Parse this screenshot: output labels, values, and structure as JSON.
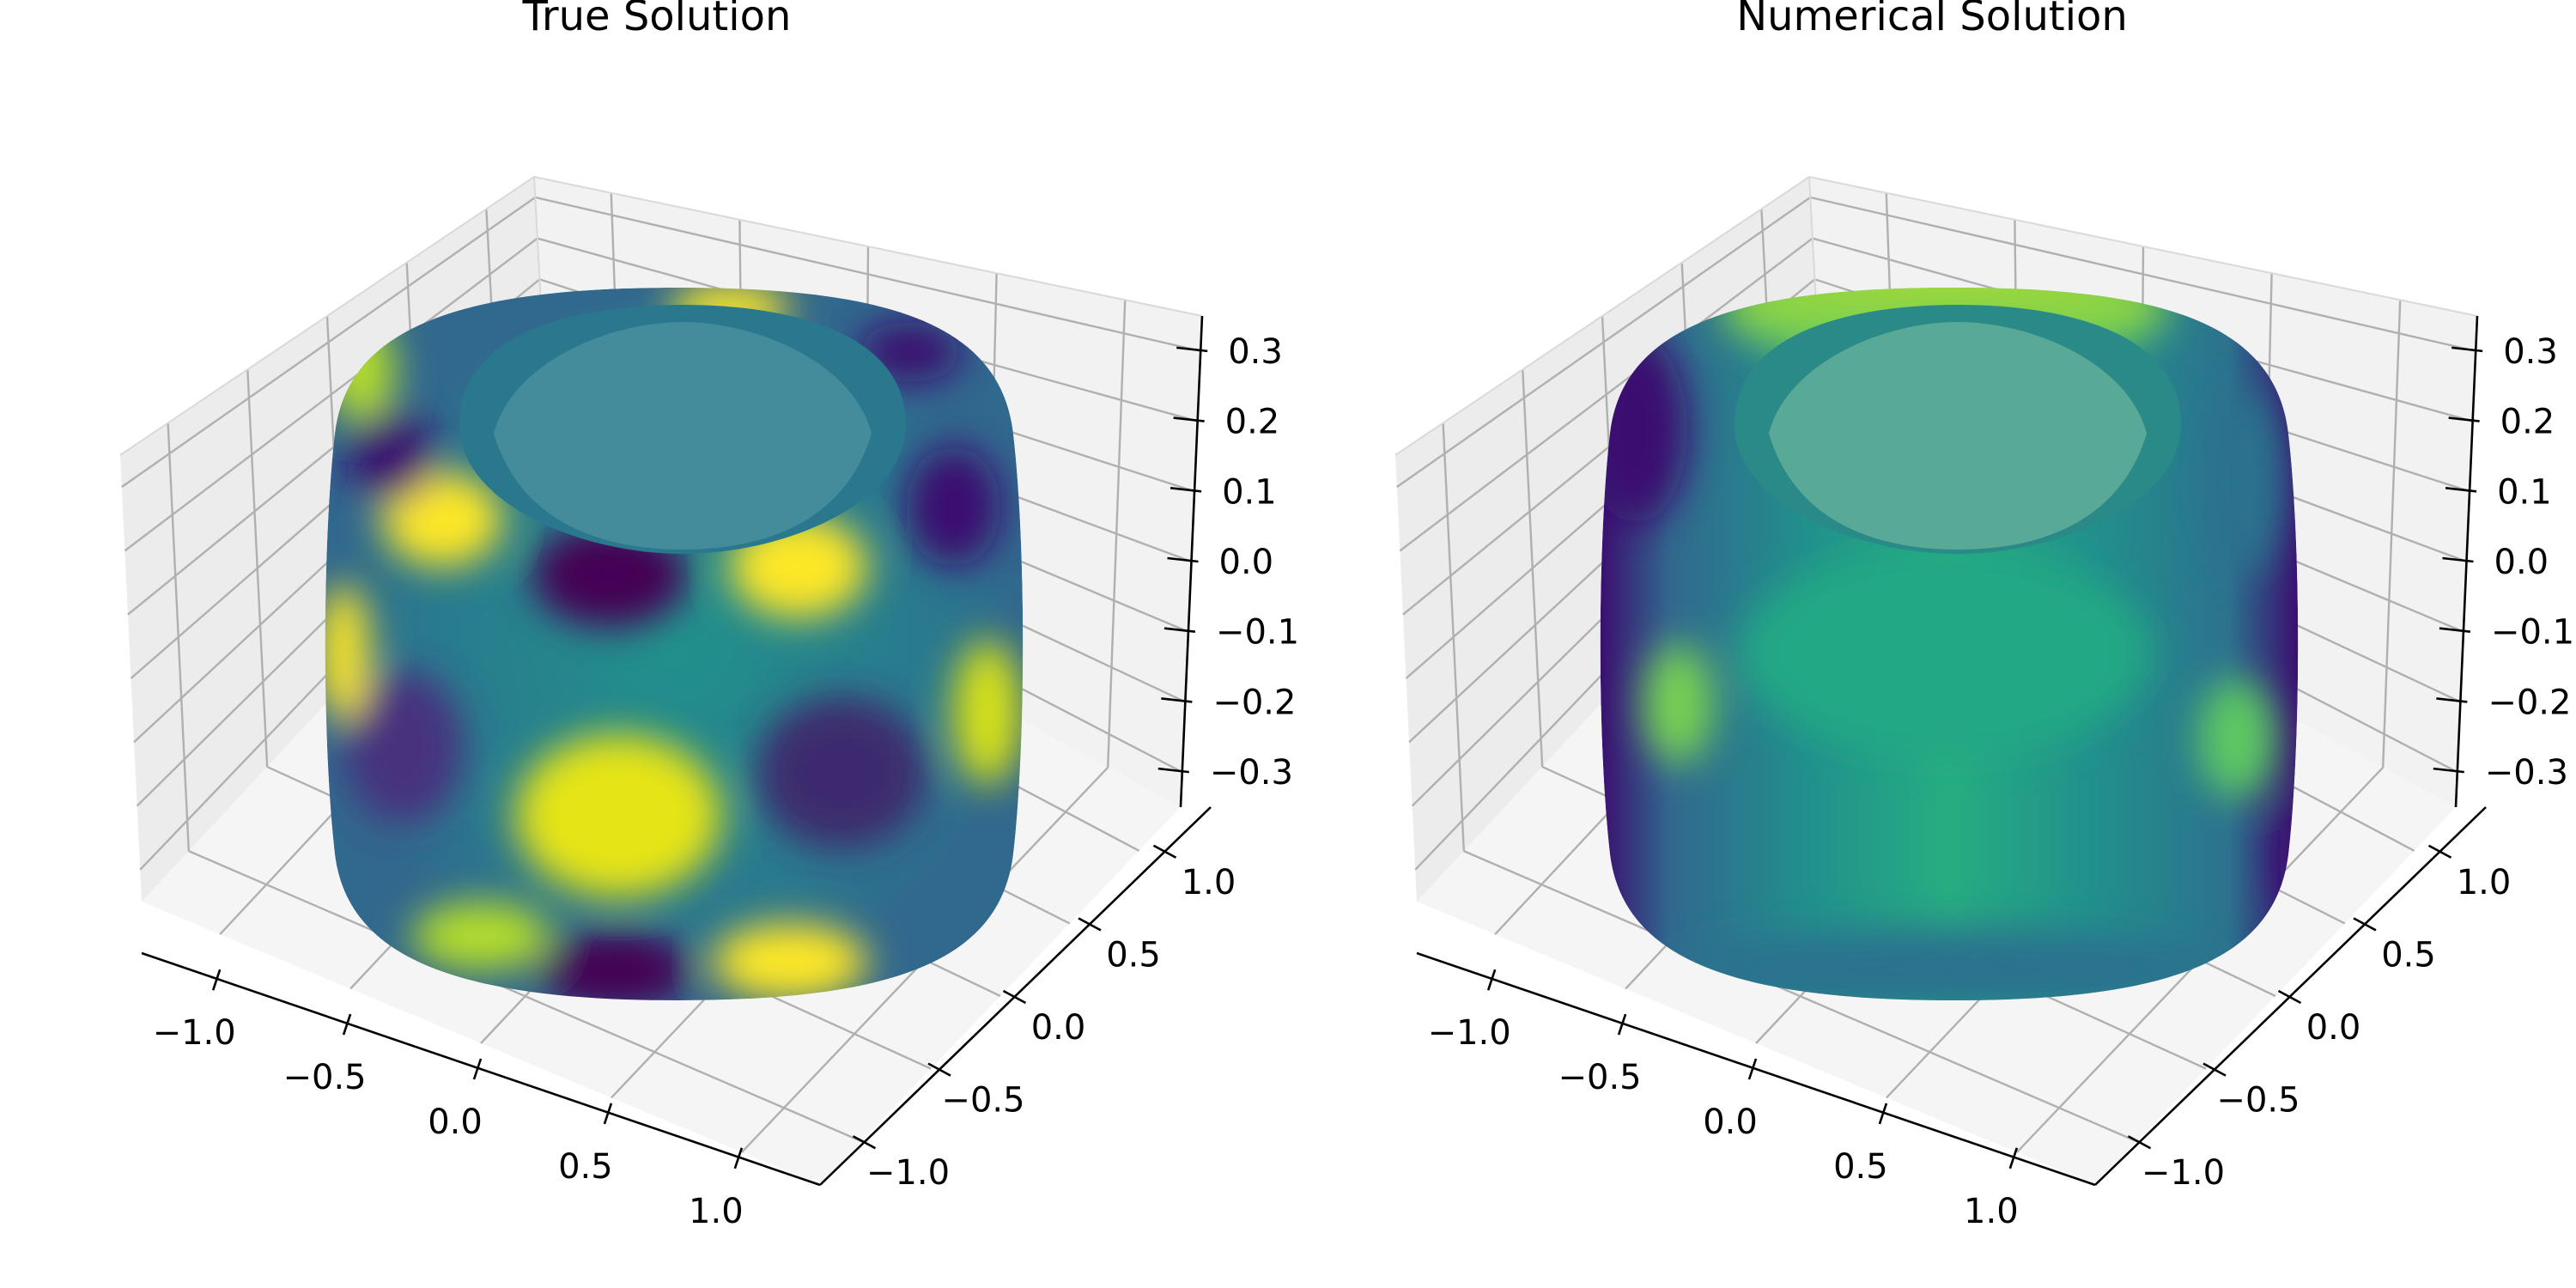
{
  "chart_data": [
    {
      "type": "scatter3d",
      "title": "True Solution",
      "surface": "torus",
      "colormap": "viridis",
      "grid": true,
      "xlim": [
        -1.3,
        1.3
      ],
      "ylim": [
        -1.3,
        1.3
      ],
      "zlim": [
        -0.35,
        0.35
      ],
      "xticks": [
        -1.0,
        -0.5,
        0.0,
        0.5,
        1.0
      ],
      "yticks": [
        -1.0,
        -0.5,
        0.0,
        0.5,
        1.0
      ],
      "zticks": [
        -0.3,
        -0.2,
        -0.1,
        0.0,
        0.1,
        0.2,
        0.3
      ],
      "xtick_labels": [
        "−1.0",
        "−0.5",
        "0.0",
        "0.5",
        "1.0"
      ],
      "ytick_labels": [
        "−1.0",
        "−0.5",
        "0.0",
        "0.5",
        "1.0"
      ],
      "ztick_labels": [
        "−0.3",
        "−0.2",
        "−0.1",
        "0.0",
        "0.1",
        "0.2",
        "0.3"
      ]
    },
    {
      "type": "scatter3d",
      "title": "Numerical Solution",
      "surface": "torus",
      "colormap": "viridis",
      "grid": true,
      "xlim": [
        -1.3,
        1.3
      ],
      "ylim": [
        -1.3,
        1.3
      ],
      "zlim": [
        -0.35,
        0.35
      ],
      "xticks": [
        -1.0,
        -0.5,
        0.0,
        0.5,
        1.0
      ],
      "yticks": [
        -1.0,
        -0.5,
        0.0,
        0.5,
        1.0
      ],
      "zticks": [
        -0.3,
        -0.2,
        -0.1,
        0.0,
        0.1,
        0.2,
        0.3
      ],
      "xtick_labels": [
        "−1.0",
        "−0.5",
        "0.0",
        "0.5",
        "1.0"
      ],
      "ytick_labels": [
        "−1.0",
        "−0.5",
        "0.0",
        "0.5",
        "1.0"
      ],
      "ztick_labels": [
        "−0.3",
        "−0.2",
        "−0.1",
        "0.0",
        "0.1",
        "0.2",
        "0.3"
      ]
    }
  ]
}
